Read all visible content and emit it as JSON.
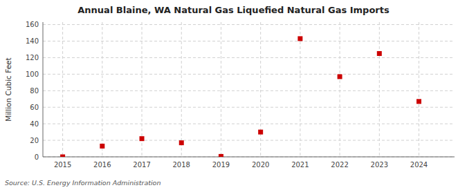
{
  "chart_data": {
    "type": "scatter",
    "title": "Annual Blaine, WA Natural Gas Liquefied Natural Gas Imports",
    "ylabel": "Million Cubic Feet",
    "source": "Source: U.S. Energy Information Administration",
    "x": [
      2015,
      2016,
      2017,
      2018,
      2019,
      2020,
      2021,
      2022,
      2023,
      2024
    ],
    "values": [
      0,
      13,
      22,
      17,
      0.5,
      30,
      143,
      97,
      125,
      67
    ],
    "color": "#cc0000",
    "marker": "square",
    "xlim": [
      2014.5,
      2024.9
    ],
    "ylim": [
      0,
      163
    ],
    "xticks": [
      2015,
      2016,
      2017,
      2018,
      2019,
      2020,
      2021,
      2022,
      2023,
      2024
    ],
    "yticks": [
      0,
      20,
      40,
      60,
      80,
      100,
      120,
      140,
      160
    ],
    "grid": true
  }
}
